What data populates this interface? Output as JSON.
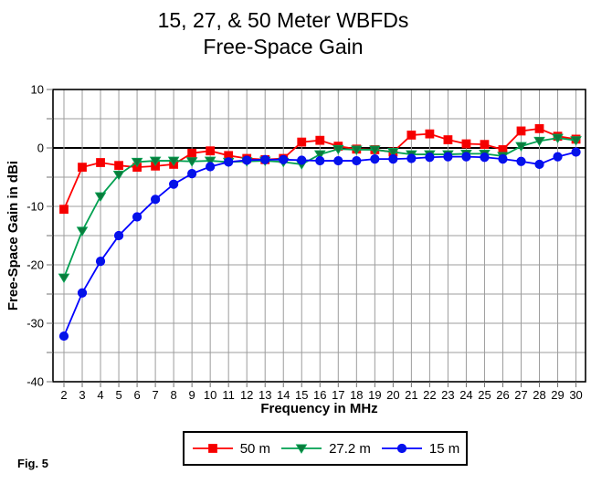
{
  "figure": {
    "title_line1": "15, 27, & 50 Meter WBFDs",
    "title_line2": "Free-Space Gain",
    "caption": "Fig. 5"
  },
  "chart_data": {
    "type": "line",
    "title": "15, 27, & 50 Meter WBFDs - Free-Space Gain",
    "xlabel": "Frequency in MHz",
    "ylabel": "Free-Space Gain in dBi",
    "x": [
      2,
      3,
      4,
      5,
      6,
      7,
      8,
      9,
      10,
      11,
      12,
      13,
      14,
      15,
      16,
      17,
      18,
      19,
      20,
      21,
      22,
      23,
      24,
      25,
      26,
      27,
      28,
      29,
      30
    ],
    "xlim": [
      2,
      30
    ],
    "ylim": [
      -40,
      10
    ],
    "y_tick_labels": [
      10,
      0,
      -10,
      -20,
      -30,
      -40
    ],
    "y_grid_step": 5,
    "grid": true,
    "legend_position": "bottom",
    "colors": {
      "grid": "#9c9c9c",
      "frame": "#000000",
      "zero_line": "#000000"
    },
    "series": [
      {
        "name": "50 m",
        "color": "#ff0000",
        "marker": "square",
        "marker_fill": "#f40000",
        "values": [
          -10.5,
          -3.3,
          -2.5,
          -3.0,
          -3.3,
          -3.1,
          -2.8,
          -0.9,
          -0.5,
          -1.3,
          -1.8,
          -2.0,
          -1.8,
          1.0,
          1.3,
          0.3,
          -0.2,
          -0.3,
          -0.7,
          2.2,
          2.4,
          1.4,
          0.7,
          0.6,
          -0.3,
          2.9,
          3.3,
          2.0,
          1.5
        ]
      },
      {
        "name": "27.2 m",
        "color": "#00a050",
        "marker": "triangle-down",
        "marker_fill": "#0c7a3c",
        "values": [
          -22.2,
          -14.2,
          -8.3,
          -4.6,
          -2.4,
          -2.2,
          -2.2,
          -2.3,
          -2.2,
          -2.4,
          -2.3,
          -2.2,
          -2.4,
          -2.8,
          -1.1,
          -0.2,
          -0.3,
          -0.3,
          -0.7,
          -1.1,
          -1.1,
          -1.1,
          -1.0,
          -1.0,
          -1.4,
          0.3,
          1.2,
          1.7,
          1.3
        ]
      },
      {
        "name": "15 m",
        "color": "#0000ff",
        "marker": "circle",
        "marker_fill": "#0414e6",
        "values": [
          -32.2,
          -24.8,
          -19.4,
          -15.0,
          -11.8,
          -8.8,
          -6.2,
          -4.4,
          -3.2,
          -2.4,
          -2.1,
          -2.0,
          -2.0,
          -2.1,
          -2.2,
          -2.2,
          -2.2,
          -1.9,
          -1.9,
          -1.8,
          -1.6,
          -1.5,
          -1.5,
          -1.6,
          -1.9,
          -2.3,
          -2.8,
          -1.5,
          -0.7
        ]
      }
    ]
  }
}
